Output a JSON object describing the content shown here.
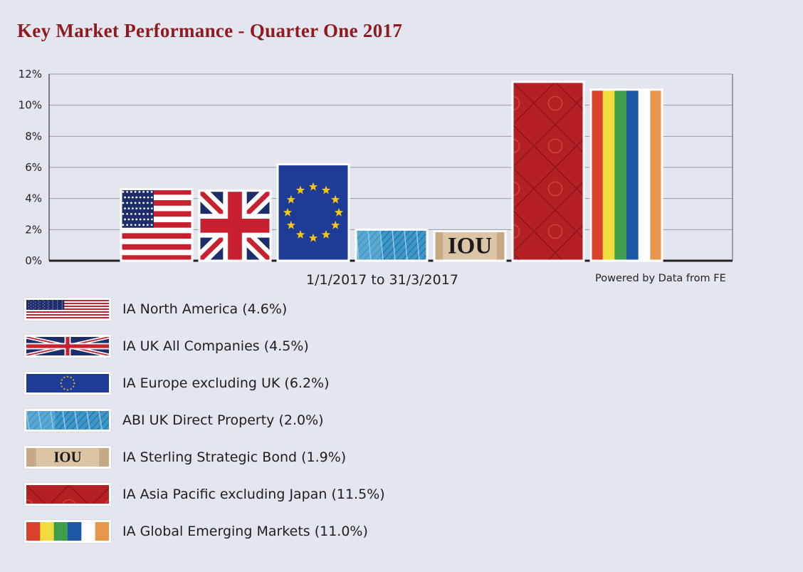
{
  "title": "Key Market Performance - Quarter One 2017",
  "axis_caption": "1/1/2017 to 31/3/2017",
  "credit": "Powered by Data from FE",
  "iou_text": "IOU",
  "colors": {
    "title": "#8f1a1f",
    "background": "#e4e6ef",
    "flag_red": "#c8202f",
    "flag_blue": "#1d2d6b",
    "eu_blue": "#1e3c96",
    "eu_star": "#f5c518",
    "asia_red": "#b52024",
    "property_blue": "#3d97c9",
    "bond_tan": "#dcc4a6",
    "em_stripes": [
      "#d9412c",
      "#f0dc3c",
      "#3f9e4c",
      "#1f57a8",
      "#ffffff",
      "#e8964a"
    ]
  },
  "legend": [
    {
      "label": "IA North America (4.6%)",
      "pattern": "us-flag"
    },
    {
      "label": "IA UK All Companies (4.5%)",
      "pattern": "uk-flag"
    },
    {
      "label": "IA Europe excluding UK (6.2%)",
      "pattern": "eu-flag"
    },
    {
      "label": "ABI UK Direct Property (2.0%)",
      "pattern": "glass-building"
    },
    {
      "label": "IA Sterling Strategic Bond (1.9%)",
      "pattern": "iou-note"
    },
    {
      "label": "IA Asia Pacific excluding Japan (11.5%)",
      "pattern": "asian-ornament"
    },
    {
      "label": "IA Global Emerging Markets (11.0%)",
      "pattern": "color-stripes"
    }
  ],
  "chart_data": {
    "type": "bar",
    "title": "Key Market Performance - Quarter One 2017",
    "xlabel": "1/1/2017 to 31/3/2017",
    "ylabel": "",
    "ylim": [
      0,
      12
    ],
    "yticks": [
      "0%",
      "2%",
      "4%",
      "6%",
      "8%",
      "10%",
      "12%"
    ],
    "grid": true,
    "categories": [
      "IA North America",
      "IA UK All Companies",
      "IA Europe excluding UK",
      "ABI UK Direct Property",
      "IA Sterling Strategic Bond",
      "IA Asia Pacific excluding Japan",
      "IA Global Emerging Markets"
    ],
    "values": [
      4.6,
      4.5,
      6.2,
      2.0,
      1.9,
      11.5,
      11.0
    ],
    "patterns": [
      "us-flag",
      "uk-flag",
      "eu-flag",
      "glass-building",
      "iou-note",
      "asian-ornament",
      "color-stripes"
    ]
  }
}
